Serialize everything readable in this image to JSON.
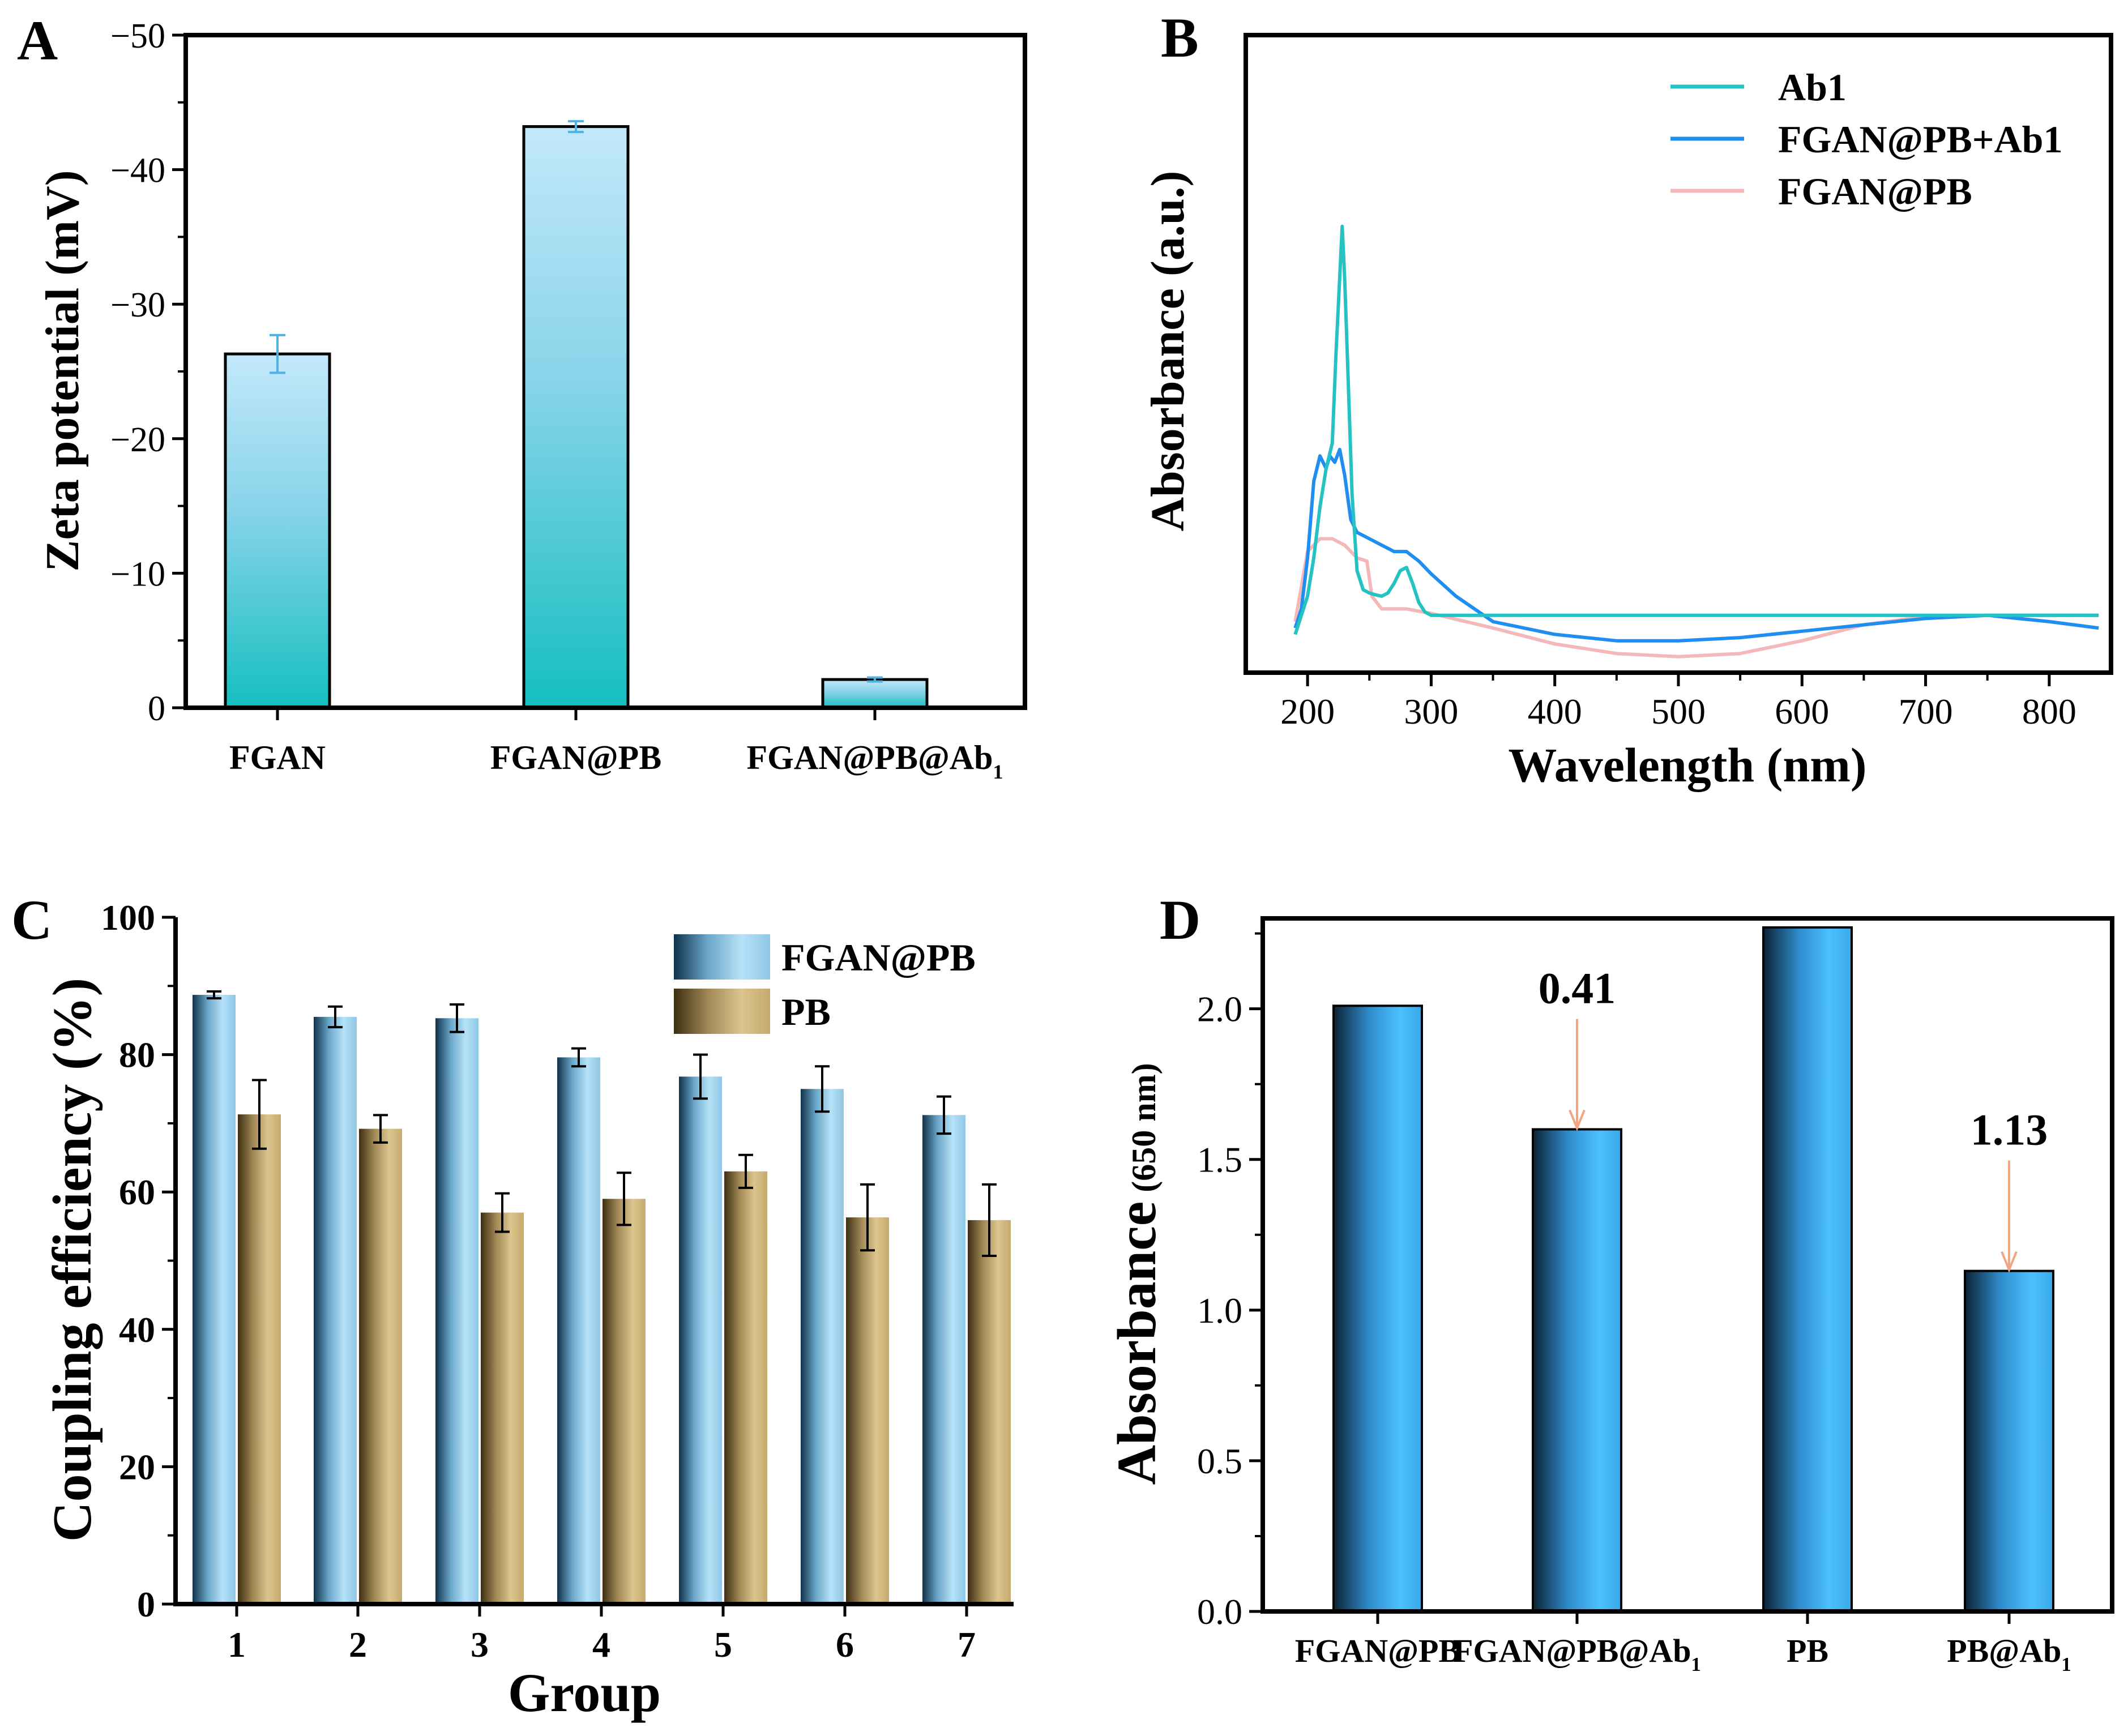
{
  "chart_data": [
    {
      "panel": "A",
      "type": "bar",
      "panel_label": "A",
      "ylabel": "Zeta potential (mV)",
      "ylim": [
        0,
        -50
      ],
      "yticks": [
        0,
        -10,
        -20,
        -30,
        -40,
        -50
      ],
      "ytick_labels": [
        "0",
        "−10",
        "−20",
        "−30",
        "−40",
        "−50"
      ],
      "categories": [
        "FGAN",
        "FGAN@PB",
        "FGAN@PB@Ab"
      ],
      "category_subscripts": [
        "",
        "",
        "1"
      ],
      "values": [
        -26.3,
        -43.2,
        -2.1
      ],
      "errors": [
        1.4,
        0.4,
        0.15
      ],
      "colors": {
        "top": "#bfe6fa",
        "bottom": "#1cc2c4",
        "error": "#4fb2e3"
      }
    },
    {
      "panel": "B",
      "type": "line",
      "panel_label": "B",
      "xlabel": "Wavelength (nm)",
      "ylabel": "Absorbance (a.u.)",
      "xlim": [
        150,
        850
      ],
      "ylim": [
        0,
        1
      ],
      "xticks": [
        200,
        300,
        400,
        500,
        600,
        700,
        800
      ],
      "xtick_labels": [
        "200",
        "300",
        "400",
        "500",
        "600",
        "700",
        "800"
      ],
      "legend_position": "top-right",
      "series": [
        {
          "name": "FGAN@PB",
          "color": "#f4b8b8",
          "x": [
            190,
            200,
            210,
            220,
            230,
            240,
            248,
            252,
            260,
            280,
            300,
            350,
            400,
            450,
            500,
            550,
            600,
            650,
            700,
            750,
            800,
            840
          ],
          "y": [
            0.08,
            0.19,
            0.21,
            0.21,
            0.2,
            0.18,
            0.175,
            0.12,
            0.1,
            0.1,
            0.093,
            0.07,
            0.045,
            0.03,
            0.025,
            0.03,
            0.05,
            0.075,
            0.088,
            0.09,
            0.09,
            0.09
          ]
        },
        {
          "name": "FGAN@PB+Ab1",
          "color": "#1f8ef0",
          "x": [
            190,
            195,
            200,
            205,
            210,
            215,
            218,
            222,
            226,
            230,
            235,
            240,
            250,
            260,
            270,
            280,
            290,
            300,
            320,
            350,
            400,
            450,
            500,
            550,
            600,
            650,
            700,
            750,
            800,
            840
          ],
          "y": [
            0.07,
            0.1,
            0.18,
            0.3,
            0.34,
            0.32,
            0.34,
            0.33,
            0.35,
            0.31,
            0.24,
            0.22,
            0.21,
            0.2,
            0.19,
            0.19,
            0.175,
            0.155,
            0.12,
            0.08,
            0.06,
            0.05,
            0.05,
            0.055,
            0.065,
            0.075,
            0.085,
            0.09,
            0.08,
            0.07
          ]
        },
        {
          "name": "Ab1",
          "color": "#24c2c2",
          "x": [
            190,
            195,
            200,
            205,
            210,
            215,
            220,
            223,
            226,
            228,
            230,
            233,
            236,
            240,
            245,
            250,
            255,
            260,
            265,
            270,
            275,
            280,
            285,
            290,
            295,
            300,
            320,
            400,
            500,
            600,
            700,
            800,
            840
          ],
          "y": [
            0.06,
            0.09,
            0.12,
            0.18,
            0.26,
            0.32,
            0.36,
            0.5,
            0.62,
            0.7,
            0.62,
            0.45,
            0.28,
            0.16,
            0.13,
            0.125,
            0.122,
            0.12,
            0.125,
            0.14,
            0.16,
            0.165,
            0.14,
            0.11,
            0.095,
            0.09,
            0.09,
            0.09,
            0.09,
            0.09,
            0.09,
            0.09,
            0.09
          ]
        }
      ]
    },
    {
      "panel": "C",
      "type": "bar",
      "panel_label": "C",
      "xlabel": "Group",
      "ylabel": "Coupling efficiency (%)",
      "ylim": [
        0,
        100
      ],
      "yticks": [
        0,
        20,
        40,
        60,
        80,
        100
      ],
      "ytick_labels": [
        "0",
        "20",
        "40",
        "60",
        "80",
        "100"
      ],
      "categories": [
        "1",
        "2",
        "3",
        "4",
        "5",
        "6",
        "7"
      ],
      "legend_position": "top-right",
      "series": [
        {
          "name": "FGAN@PB",
          "values": [
            88.7,
            85.5,
            85.3,
            79.6,
            76.8,
            75.0,
            71.2
          ],
          "errors": [
            0.5,
            1.5,
            2.0,
            1.3,
            3.2,
            3.3,
            2.7
          ],
          "colors": {
            "dark": "#1e5276",
            "light": "#a9d9f2"
          }
        },
        {
          "name": "PB",
          "values": [
            71.3,
            69.2,
            57.0,
            59.0,
            63.0,
            56.3,
            55.9
          ],
          "errors": [
            5.0,
            2.0,
            2.8,
            3.8,
            2.4,
            4.8,
            5.2
          ],
          "colors": {
            "dark": "#4a3a18",
            "light": "#d6bf87"
          }
        }
      ]
    },
    {
      "panel": "D",
      "type": "bar",
      "panel_label": "D",
      "ylabel_main": "Absorbance",
      "ylabel_unit": "(650 nm)",
      "ylim": [
        0,
        2.3
      ],
      "yticks": [
        0.0,
        0.5,
        1.0,
        1.5,
        2.0
      ],
      "ytick_labels": [
        "0.0",
        "0.5",
        "1.0",
        "1.5",
        "2.0"
      ],
      "categories": [
        "FGAN@PB",
        "FGAN@PB@Ab",
        "PB",
        "PB@Ab"
      ],
      "category_subscripts": [
        "",
        "1",
        "",
        "1"
      ],
      "values": [
        2.01,
        1.6,
        2.27,
        1.13
      ],
      "annotations": [
        {
          "category_index": 1,
          "text": "0.41"
        },
        {
          "category_index": 3,
          "text": "1.13"
        }
      ],
      "colors": {
        "dark": "#102a3e",
        "light": "#45b6f5",
        "arrow": "#f0a882"
      }
    }
  ]
}
